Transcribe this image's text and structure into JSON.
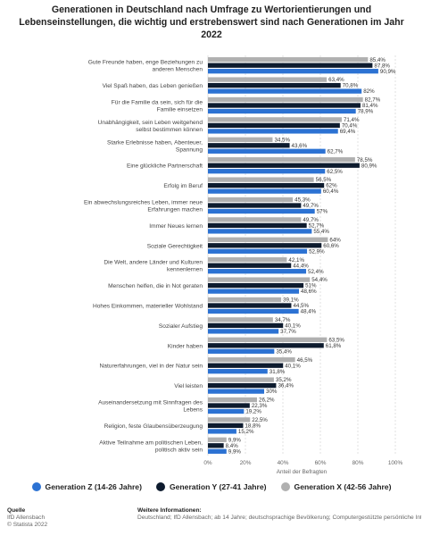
{
  "title": "Generationen in Deutschland nach Umfrage zu Wertorientierungen und Lebenseinstellungen, die wichtig und erstrebenswert sind nach Generationen im Jahr 2022",
  "colors": {
    "gen_z": "#2c72d3",
    "gen_y": "#0d1b2e",
    "gen_x": "#b0b0b0"
  },
  "chart_data": {
    "type": "bar",
    "orientation": "horizontal",
    "xlabel": "Anteil der Befragten",
    "xlim": [
      0,
      100
    ],
    "xticks": [
      "0%",
      "20%",
      "40%",
      "60%",
      "80%",
      "100%"
    ],
    "grid": true,
    "legend_position": "bottom",
    "categories": [
      "Gute Freunde haben, enge Beziehungen zu anderen Menschen",
      "Viel Spaß haben, das Leben genießen",
      "Für die Familie da sein, sich für die Familie einsetzen",
      "Unabhängigkeit, sein Leben weitgehend selbst bestimmen können",
      "Starke Erlebnisse haben, Abenteuer, Spannung",
      "Eine glückliche Partnerschaft",
      "Erfolg im Beruf",
      "Ein abwechslungsreiches Leben, immer neue Erfahrungen machen",
      "Immer Neues lernen",
      "Soziale Gerechtigkeit",
      "Die Welt, andere Länder und Kulturen kennenlernen",
      "Menschen helfen, die in Not geraten",
      "Hohes Einkommen, materieller Wohlstand",
      "Sozialer Aufstieg",
      "Kinder haben",
      "Naturerfahrungen, viel in der Natur sein",
      "Viel leisten",
      "Auseinandersetzung mit Sinnfragen des Lebens",
      "Religion, feste Glaubensüberzeugung",
      "Aktive Teilnahme am politischen Leben, politisch aktiv sein"
    ],
    "series": [
      {
        "name": "Generation X (42-56 Jahre)",
        "key": "gen_x",
        "values": [
          85.4,
          63.4,
          82.7,
          71.4,
          34.5,
          78.5,
          56.5,
          45.3,
          49.7,
          64,
          42.1,
          54.4,
          39.1,
          34.7,
          63.5,
          46.5,
          35.2,
          26.2,
          22.5,
          9.9
        ],
        "labels": [
          "85,4%",
          "63,4%",
          "82,7%",
          "71,4%",
          "34,5%",
          "78,5%",
          "56,5%",
          "45,3%",
          "49,7%",
          "64%",
          "42,1%",
          "54,4%",
          "39,1%",
          "34,7%",
          "63,5%",
          "46,5%",
          "35,2%",
          "26,2%",
          "22,5%",
          "9,9%"
        ]
      },
      {
        "name": "Generation Y (27-41 Jahre)",
        "key": "gen_y",
        "values": [
          87.8,
          70.8,
          81.4,
          70.4,
          43.6,
          80.9,
          62,
          49.7,
          52.7,
          60.6,
          44.4,
          51,
          44.5,
          40.1,
          61.8,
          40.1,
          36.4,
          22.3,
          18.8,
          8.4
        ],
        "labels": [
          "87,8%",
          "70,8%",
          "81,4%",
          "70,4%",
          "43,6%",
          "80,9%",
          "62%",
          "49,7%",
          "52,7%",
          "60,6%",
          "44,4%",
          "51%",
          "44,5%",
          "40,1%",
          "61,8%",
          "40,1%",
          "36,4%",
          "22,3%",
          "18,8%",
          "8,4%"
        ]
      },
      {
        "name": "Generation Z (14-26 Jahre)",
        "key": "gen_z",
        "values": [
          90.9,
          82,
          78.9,
          69.4,
          62.7,
          62.5,
          60.4,
          57,
          55.4,
          52.9,
          52.4,
          48.6,
          48.4,
          37.7,
          35.4,
          31.8,
          30,
          19.2,
          15.2,
          9.9
        ],
        "labels": [
          "90,9%",
          "82%",
          "78,9%",
          "69,4%",
          "62,7%",
          "62,5%",
          "60,4%",
          "57%",
          "55,4%",
          "52,9%",
          "52,4%",
          "48,6%",
          "48,4%",
          "37,7%",
          "35,4%",
          "31,8%",
          "30%",
          "19,2%",
          "15,2%",
          "9,9%"
        ]
      }
    ],
    "legend": [
      "Generation Z (14-26 Jahre)",
      "Generation Y (27-41 Jahre)",
      "Generation X (42-56 Jahre)"
    ]
  },
  "footer": {
    "source_label": "Quelle",
    "source_lines": [
      "IfD Allensbach",
      "© Statista 2022"
    ],
    "info_label": "Weitere Informationen:",
    "info_text": "Deutschland; IfD Allensbach; ab 14 Jahre; deutschsprachige Bevölkerung; Computergestützte persönliche Interviews (CAPI)"
  }
}
